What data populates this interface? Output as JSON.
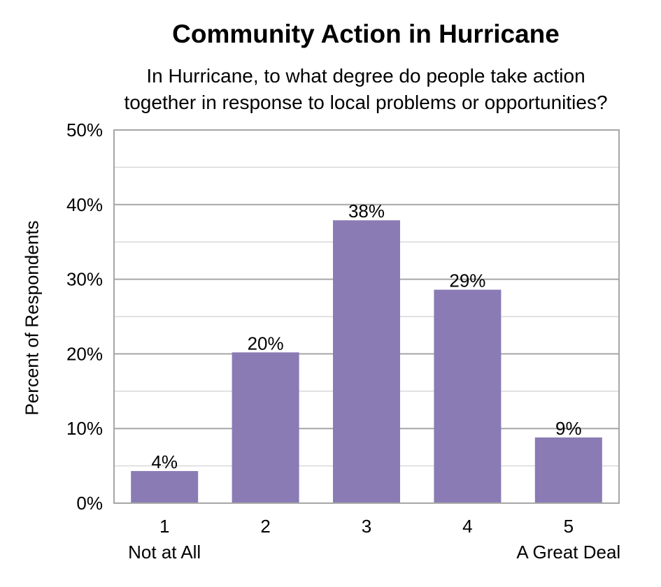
{
  "chart_data": {
    "type": "bar",
    "title": "Community Action in Hurricane",
    "subtitle_lines": [
      "In Hurricane, to what degree do people take action",
      "together in response to local problems or opportunities?"
    ],
    "ylabel": "Percent of Respondents",
    "xlabel": "",
    "categories": [
      "1",
      "2",
      "3",
      "4",
      "5"
    ],
    "category_sublabels": [
      "Not at All",
      "",
      "",
      "",
      "A Great Deal"
    ],
    "values": [
      4.3,
      20.2,
      37.9,
      28.6,
      8.8
    ],
    "data_labels": [
      "4%",
      "20%",
      "38%",
      "29%",
      "9%"
    ],
    "ylim": [
      0,
      50
    ],
    "yticks": [
      0,
      10,
      20,
      30,
      40,
      50
    ],
    "ytick_labels": [
      "0%",
      "10%",
      "20%",
      "30%",
      "40%",
      "50%"
    ],
    "grid": true,
    "legend": "none",
    "colors": {
      "bar": "#8A7BB5",
      "major_grid": "#A6A6A6",
      "minor_grid": "#D9D9D9",
      "frame": "#A6A6A6"
    }
  }
}
